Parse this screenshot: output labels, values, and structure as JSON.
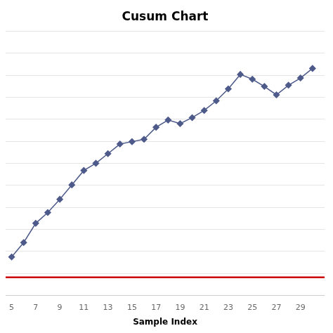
{
  "chart_data": {
    "type": "line",
    "title": "Cusum Chart",
    "xlabel": "Sample Index",
    "x": [
      5,
      6,
      7,
      8,
      9,
      10,
      11,
      12,
      13,
      14,
      15,
      16,
      17,
      18,
      19,
      20,
      21,
      22,
      23,
      24,
      25,
      26,
      27,
      28,
      29,
      30
    ],
    "series": [
      {
        "values": [
          0.1,
          0.7,
          1.5,
          1.95,
          2.5,
          3.1,
          3.7,
          4.0,
          4.4,
          4.8,
          4.9,
          5.0,
          5.5,
          5.8,
          5.65,
          5.9,
          6.2,
          6.6,
          7.1,
          7.7,
          7.5,
          7.2,
          6.85,
          7.25,
          7.55,
          7.95
        ],
        "color": "#4d5a8a",
        "marker": "diamond",
        "line_style": "solid"
      }
    ],
    "reference_line": {
      "value": -0.75,
      "color": "#cc0000"
    },
    "xlim": [
      4.5,
      31.0
    ],
    "ylim": [
      -1.5,
      9.5
    ],
    "xticks": [
      5,
      7,
      9,
      11,
      13,
      15,
      17,
      19,
      21,
      23,
      25,
      27,
      29
    ],
    "yticks": [
      -1.5,
      -0.5833333333333333,
      0.3333333333333333,
      1.25,
      2.1666666666666665,
      3.083333333333333,
      4.0,
      4.916666666666666,
      5.833333333333333,
      6.75,
      7.666666666666666,
      8.583333333333332,
      9.5
    ],
    "tick_labels": "x",
    "grid": "y",
    "legend": false
  }
}
